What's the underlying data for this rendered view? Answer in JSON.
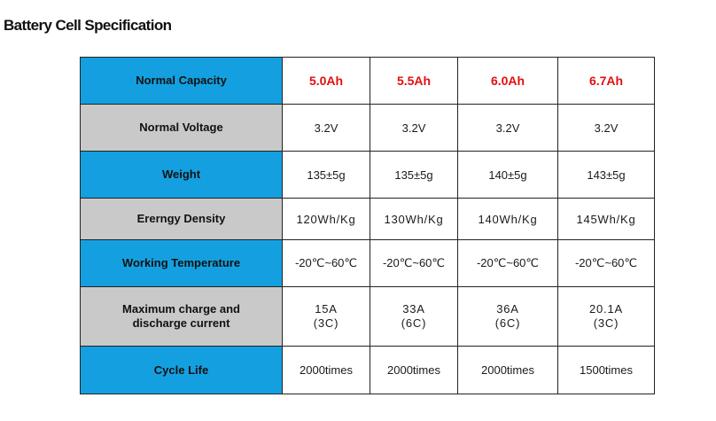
{
  "title": "Battery Cell Specification",
  "rows": [
    {
      "label": "Normal Capacity",
      "style": "blue",
      "values": [
        "5.0Ah",
        "5.5Ah",
        "6.0Ah",
        "6.7Ah"
      ]
    },
    {
      "label": "Normal Voltage",
      "style": "gray",
      "values": [
        "3.2V",
        "3.2V",
        "3.2V",
        "3.2V"
      ]
    },
    {
      "label": "Weight",
      "style": "blue",
      "values": [
        "135±5g",
        "135±5g",
        "140±5g",
        "143±5g"
      ]
    },
    {
      "label": "Ererngy Density",
      "style": "gray",
      "values": [
        "120Wh/Kg",
        "130Wh/Kg",
        "140Wh/Kg",
        "145Wh/Kg"
      ]
    },
    {
      "label": "Working Temperature",
      "style": "blue",
      "values": [
        "-20℃~60℃",
        "-20℃~60℃",
        "-20℃~60℃",
        "-20℃~60℃"
      ]
    },
    {
      "label_lines": [
        "Maximum charge and",
        "discharge current"
      ],
      "style": "gray",
      "values": [
        [
          "15A",
          "(3C)"
        ],
        [
          "33A",
          "(6C)"
        ],
        [
          "36A",
          "(6C)"
        ],
        [
          "20.1A",
          "(3C)"
        ]
      ]
    },
    {
      "label": "Cycle Life",
      "style": "blue",
      "values": [
        "2000times",
        "2000times",
        "2000times",
        "1500times"
      ]
    }
  ],
  "colors": {
    "header_blue": "#14a0e0",
    "header_gray": "#c9c9c9",
    "capacity_red": "#e11010"
  }
}
